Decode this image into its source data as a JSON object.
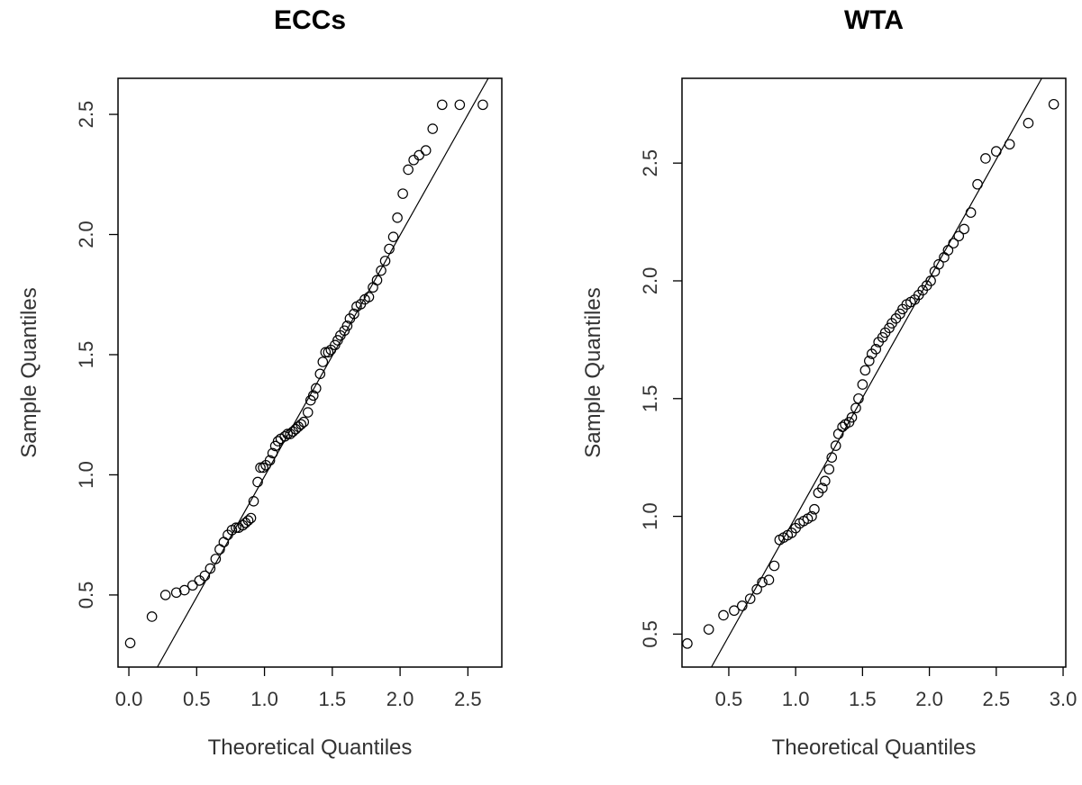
{
  "chart_data": [
    {
      "type": "scatter",
      "title": "ECCs",
      "xlabel": "Theoretical Quantiles",
      "ylabel": "Sample Quantiles",
      "xlim": [
        -0.08,
        2.75
      ],
      "ylim": [
        0.2,
        2.65
      ],
      "xticks": [
        0.0,
        0.5,
        1.0,
        1.5,
        2.0,
        2.5
      ],
      "xtick_labels": [
        "0.0",
        "0.5",
        "1.0",
        "1.5",
        "2.0",
        "2.5"
      ],
      "yticks": [
        0.5,
        1.0,
        1.5,
        2.0,
        2.5
      ],
      "ytick_labels": [
        "0.5",
        "1.0",
        "1.5",
        "2.0",
        "2.5"
      ],
      "reference_line": [
        [
          0.21,
          0.2
        ],
        [
          2.65,
          2.65
        ]
      ],
      "x": [
        0.01,
        0.17,
        0.27,
        0.35,
        0.41,
        0.47,
        0.52,
        0.56,
        0.6,
        0.64,
        0.67,
        0.7,
        0.73,
        0.76,
        0.79,
        0.81,
        0.84,
        0.86,
        0.88,
        0.9,
        0.92,
        0.95,
        0.97,
        0.99,
        1.01,
        1.04,
        1.06,
        1.08,
        1.1,
        1.12,
        1.15,
        1.17,
        1.19,
        1.21,
        1.23,
        1.25,
        1.27,
        1.29,
        1.32,
        1.34,
        1.36,
        1.38,
        1.41,
        1.43,
        1.45,
        1.47,
        1.49,
        1.52,
        1.54,
        1.56,
        1.59,
        1.61,
        1.63,
        1.66,
        1.68,
        1.71,
        1.74,
        1.77,
        1.8,
        1.83,
        1.86,
        1.89,
        1.92,
        1.95,
        1.98,
        2.02,
        2.06,
        2.1,
        2.14,
        2.19,
        2.24,
        2.31,
        2.44,
        2.61
      ],
      "y": [
        0.3,
        0.41,
        0.5,
        0.51,
        0.52,
        0.54,
        0.56,
        0.58,
        0.61,
        0.65,
        0.69,
        0.72,
        0.75,
        0.77,
        0.78,
        0.78,
        0.79,
        0.8,
        0.81,
        0.82,
        0.89,
        0.97,
        1.03,
        1.03,
        1.04,
        1.06,
        1.09,
        1.12,
        1.14,
        1.15,
        1.16,
        1.17,
        1.17,
        1.18,
        1.19,
        1.2,
        1.21,
        1.22,
        1.26,
        1.31,
        1.33,
        1.36,
        1.42,
        1.47,
        1.51,
        1.51,
        1.52,
        1.54,
        1.56,
        1.58,
        1.6,
        1.62,
        1.65,
        1.67,
        1.7,
        1.71,
        1.73,
        1.74,
        1.78,
        1.81,
        1.85,
        1.89,
        1.94,
        1.99,
        2.07,
        2.17,
        2.27,
        2.31,
        2.33,
        2.35,
        2.44,
        2.54,
        2.54,
        2.54
      ]
    },
    {
      "type": "scatter",
      "title": "WTA",
      "xlabel": "Theoretical Quantiles",
      "ylabel": "Sample Quantiles",
      "xlim": [
        0.15,
        3.02
      ],
      "ylim": [
        0.36,
        2.86
      ],
      "xticks": [
        0.5,
        1.0,
        1.5,
        2.0,
        2.5,
        3.0
      ],
      "xtick_labels": [
        "0.5",
        "1.0",
        "1.5",
        "2.0",
        "2.5",
        "3.0"
      ],
      "yticks": [
        0.5,
        1.0,
        1.5,
        2.0,
        2.5
      ],
      "ytick_labels": [
        "0.5",
        "1.0",
        "1.5",
        "2.0",
        "2.5"
      ],
      "reference_line": [
        [
          0.37,
          0.36
        ],
        [
          2.84,
          2.86
        ]
      ],
      "x": [
        0.19,
        0.35,
        0.46,
        0.54,
        0.6,
        0.66,
        0.71,
        0.75,
        0.8,
        0.84,
        0.88,
        0.91,
        0.94,
        0.97,
        1.0,
        1.03,
        1.06,
        1.09,
        1.12,
        1.14,
        1.17,
        1.2,
        1.22,
        1.25,
        1.27,
        1.3,
        1.32,
        1.35,
        1.37,
        1.4,
        1.42,
        1.45,
        1.47,
        1.5,
        1.52,
        1.55,
        1.57,
        1.6,
        1.62,
        1.65,
        1.67,
        1.7,
        1.72,
        1.75,
        1.78,
        1.8,
        1.83,
        1.86,
        1.89,
        1.92,
        1.95,
        1.98,
        2.01,
        2.04,
        2.07,
        2.11,
        2.14,
        2.18,
        2.22,
        2.26,
        2.31,
        2.36,
        2.42,
        2.5,
        2.6,
        2.74,
        2.93
      ],
      "y": [
        0.46,
        0.52,
        0.58,
        0.6,
        0.62,
        0.65,
        0.69,
        0.72,
        0.73,
        0.79,
        0.9,
        0.91,
        0.92,
        0.93,
        0.95,
        0.97,
        0.98,
        0.99,
        1.0,
        1.03,
        1.1,
        1.12,
        1.15,
        1.2,
        1.25,
        1.3,
        1.35,
        1.38,
        1.39,
        1.4,
        1.42,
        1.46,
        1.5,
        1.56,
        1.62,
        1.66,
        1.69,
        1.71,
        1.74,
        1.76,
        1.78,
        1.8,
        1.82,
        1.84,
        1.86,
        1.88,
        1.9,
        1.91,
        1.92,
        1.94,
        1.96,
        1.98,
        2.0,
        2.04,
        2.07,
        2.1,
        2.13,
        2.16,
        2.19,
        2.22,
        2.29,
        2.41,
        2.52,
        2.55,
        2.58,
        2.67,
        2.75
      ]
    }
  ]
}
